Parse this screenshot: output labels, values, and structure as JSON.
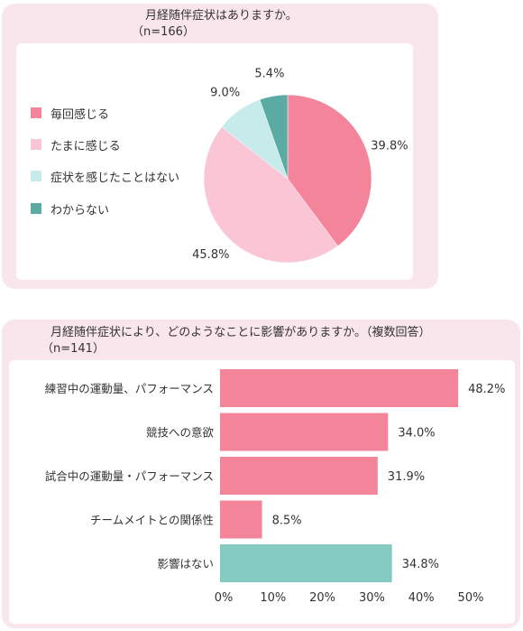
{
  "chart_data": [
    {
      "type": "pie",
      "title": "月経随伴症状はありますか。",
      "subtitle": "（n=166）",
      "unit": "%",
      "colors": [
        "#f38499",
        "#fac6d6",
        "#c6ebea",
        "#5aaba3"
      ],
      "slices": [
        {
          "label": "毎回感じる",
          "value": 39.8,
          "value_label": "39.8%"
        },
        {
          "label": "たまに感じる",
          "value": 45.8,
          "value_label": "45.8%"
        },
        {
          "label": "症状を感じたことはない",
          "value": 9.0,
          "value_label": "9.0%"
        },
        {
          "label": "わからない",
          "value": 5.4,
          "value_label": "5.4%"
        }
      ],
      "legend_position": "left"
    },
    {
      "type": "bar",
      "orientation": "horizontal",
      "title": "月経随伴症状により、どのようなことに影響がありますか。（複数回答）",
      "subtitle": "（n=141）",
      "categories": [
        "練習中の運動量、パフォーマンス",
        "競技への意欲",
        "試合中の運動量・パフォーマンス",
        "チームメイトとの関係性",
        "影響はない"
      ],
      "values": [
        48.2,
        34.0,
        31.9,
        8.5,
        34.8
      ],
      "value_labels": [
        "48.2%",
        "34.0%",
        "31.9%",
        "8.5%",
        "34.8%"
      ],
      "bar_colors": [
        "#f38499",
        "#f38499",
        "#f38499",
        "#f38499",
        "#85cbc2"
      ],
      "xlim": [
        0,
        50
      ],
      "xticks": [
        "0%",
        "10%",
        "20%",
        "30%",
        "40%",
        "50%"
      ],
      "grid": false
    }
  ]
}
